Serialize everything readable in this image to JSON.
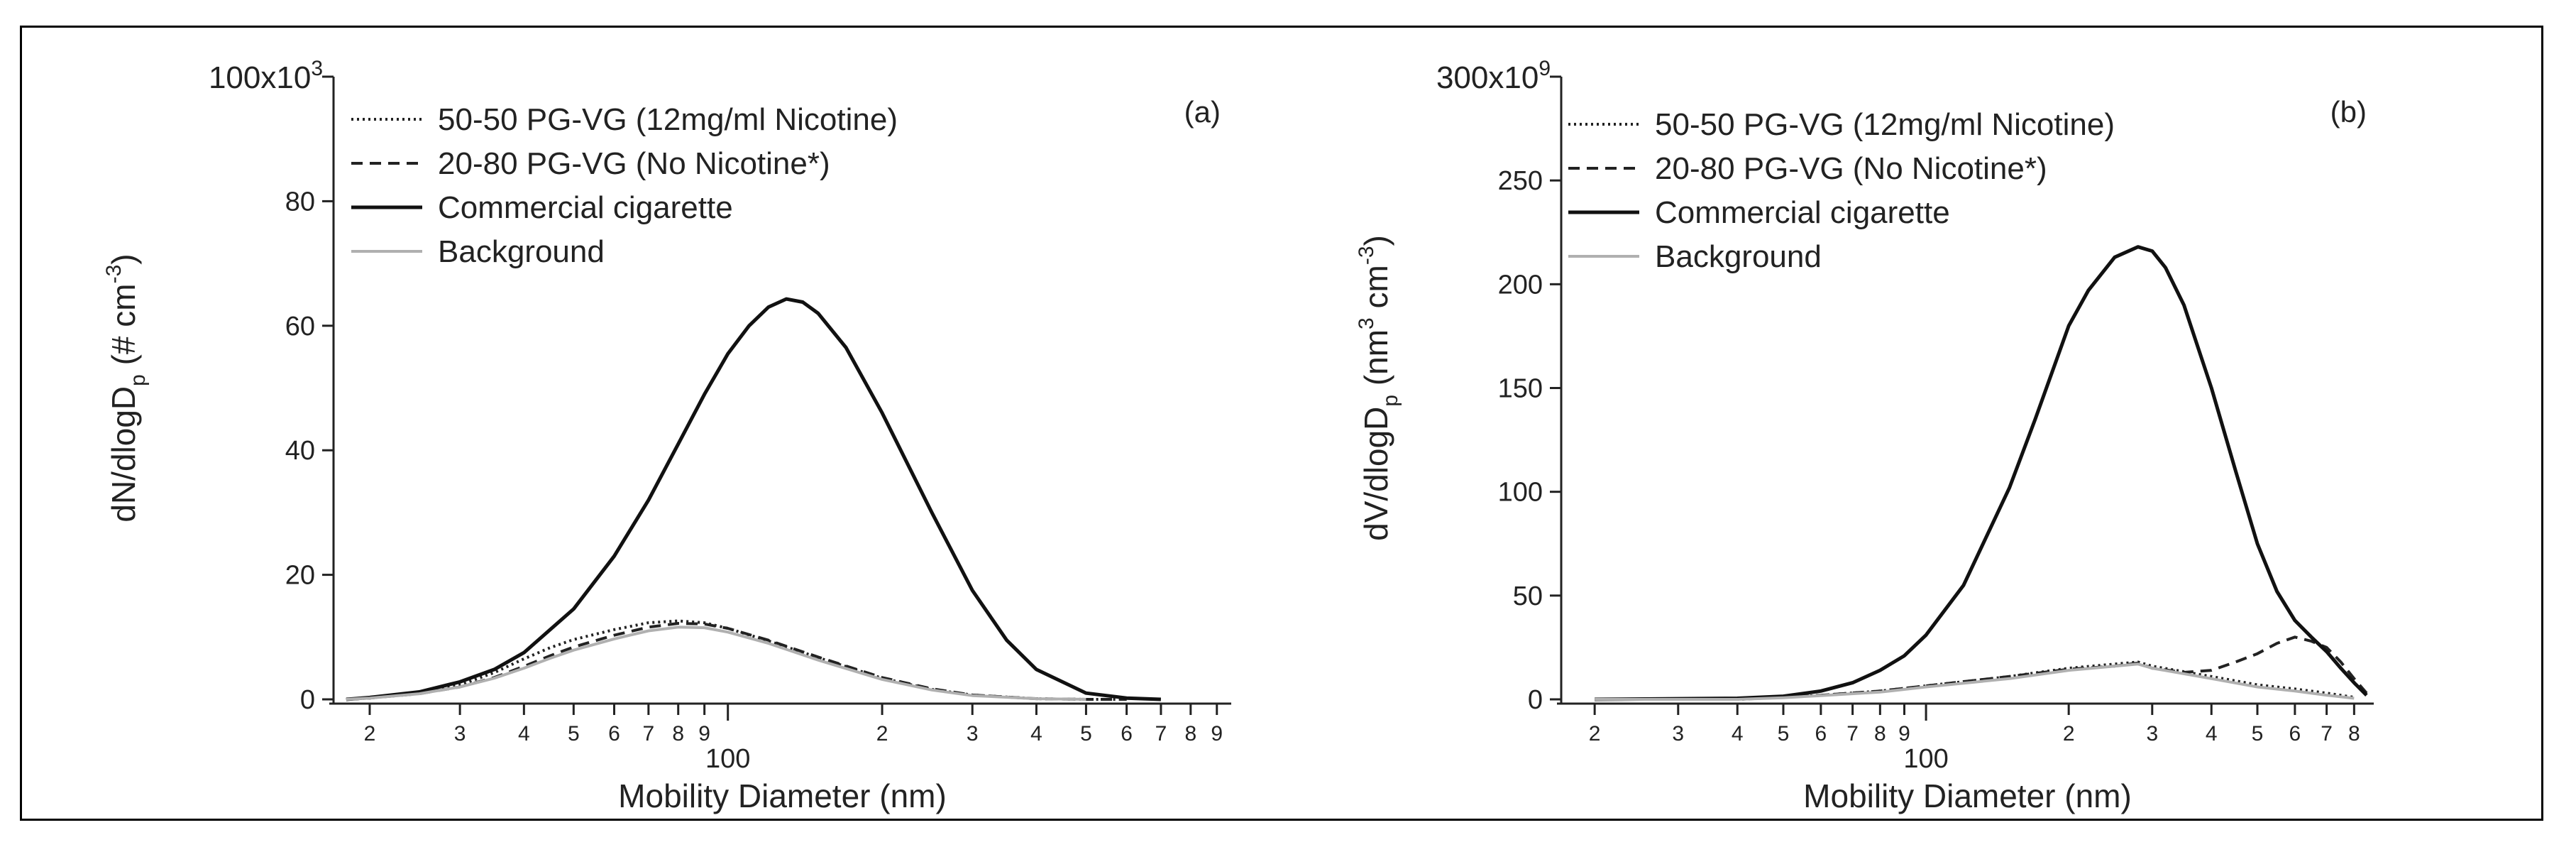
{
  "chart_data": [
    {
      "type": "line",
      "panel_label": "(a)",
      "xlabel": "Mobility Diameter (nm)",
      "ylabel": "dN/dlogD_p (# cm^-3)",
      "ylabel_parts": {
        "main": "dN/dlogD",
        "sub": "p",
        "rest": " (# cm",
        "sup": "-3",
        "close": ")"
      },
      "x_scale": "log",
      "xlim": [
        17,
        960
      ],
      "x_major_label": "100",
      "ylim": [
        0,
        100000
      ],
      "y_ticks": [
        {
          "v": 0,
          "label": "0"
        },
        {
          "v": 20000,
          "label": "20"
        },
        {
          "v": 40000,
          "label": "40"
        },
        {
          "v": 60000,
          "label": "60"
        },
        {
          "v": 80000,
          "label": "80"
        }
      ],
      "y_max_label": {
        "base": "100x10",
        "exp": "3"
      },
      "legend_placement": "top-left",
      "series": [
        {
          "name": "50-50 PG-VG (12mg/ml Nicotine)",
          "style": "dotted",
          "color": "#222222",
          "x": [
            18,
            20,
            25,
            30,
            35,
            40,
            45,
            50,
            60,
            70,
            80,
            90,
            100,
            120,
            150,
            200,
            250,
            300,
            400,
            500,
            600
          ],
          "y": [
            0,
            200,
            1000,
            2300,
            4300,
            6500,
            8300,
            9600,
            11200,
            12300,
            12600,
            12300,
            11400,
            9400,
            6700,
            3400,
            1600,
            700,
            100,
            0,
            0
          ]
        },
        {
          "name": "20-80 PG-VG (No Nicotine*)",
          "style": "dashed",
          "color": "#222222",
          "x": [
            18,
            20,
            25,
            30,
            35,
            40,
            45,
            50,
            60,
            70,
            80,
            90,
            100,
            120,
            150,
            200,
            250,
            300,
            400,
            500,
            600
          ],
          "y": [
            0,
            200,
            900,
            2000,
            3500,
            5300,
            7000,
            8400,
            10300,
            11600,
            12200,
            12100,
            11400,
            9500,
            6800,
            3500,
            1700,
            700,
            100,
            0,
            0
          ]
        },
        {
          "name": "Commercial cigarette",
          "style": "solid",
          "color": "#111111",
          "x": [
            18,
            20,
            25,
            30,
            35,
            40,
            50,
            60,
            70,
            80,
            90,
            100,
            110,
            120,
            130,
            140,
            150,
            170,
            200,
            250,
            300,
            350,
            400,
            500,
            600,
            700
          ],
          "y": [
            0,
            300,
            1200,
            2800,
            4800,
            7500,
            14500,
            23000,
            32000,
            41000,
            49000,
            55500,
            60000,
            63000,
            64300,
            63800,
            62000,
            56500,
            46000,
            30000,
            17500,
            9500,
            4800,
            1000,
            200,
            0
          ]
        },
        {
          "name": "Background",
          "style": "solid",
          "color": "#b0b0b0",
          "x": [
            18,
            20,
            25,
            30,
            35,
            40,
            45,
            50,
            60,
            70,
            80,
            90,
            100,
            120,
            150,
            200,
            250,
            300,
            400,
            500
          ],
          "y": [
            0,
            200,
            900,
            2000,
            3400,
            5000,
            6600,
            7900,
            9700,
            11000,
            11600,
            11500,
            10800,
            9000,
            6300,
            3200,
            1500,
            600,
            100,
            0
          ]
        }
      ]
    },
    {
      "type": "line",
      "panel_label": "(b)",
      "xlabel": "Mobility Diameter (nm)",
      "ylabel": "dV/dlogD_p (nm^3 cm^-3)",
      "ylabel_parts": {
        "main": "dV/dlogD",
        "sub": "p",
        "rest": " (nm",
        "sup": "3",
        "rest2": " cm",
        "sup2": "-3",
        "close": ")"
      },
      "x_scale": "log",
      "xlim": [
        17,
        880
      ],
      "x_major_label": "100",
      "ylim": [
        0,
        300000000000
      ],
      "y_ticks": [
        {
          "v": 0,
          "label": "0"
        },
        {
          "v": 50000000000,
          "label": "50"
        },
        {
          "v": 100000000000,
          "label": "100"
        },
        {
          "v": 150000000000,
          "label": "150"
        },
        {
          "v": 200000000000,
          "label": "200"
        },
        {
          "v": 250000000000,
          "label": "250"
        }
      ],
      "y_max_label": {
        "base": "300x10",
        "exp": "9"
      },
      "legend_placement": "top-left",
      "series": [
        {
          "name": "50-50 PG-VG (12mg/ml Nicotine)",
          "style": "dotted",
          "color": "#222222",
          "x": [
            20,
            40,
            50,
            60,
            80,
            100,
            150,
            200,
            250,
            280,
            300,
            400,
            500,
            600,
            700,
            800
          ],
          "y": [
            0,
            0,
            1000000000,
            2000000000,
            4000000000,
            6500000000,
            11000000000,
            15000000000,
            17000000000,
            18000000000,
            16000000000,
            11000000000,
            7000000000,
            5000000000,
            3000000000,
            1000000000
          ]
        },
        {
          "name": "20-80 PG-VG (No Nicotine*)",
          "style": "dashed",
          "color": "#222222",
          "x": [
            20,
            40,
            50,
            60,
            80,
            100,
            150,
            200,
            250,
            280,
            300,
            350,
            400,
            450,
            500,
            550,
            600,
            650,
            700,
            750,
            800,
            850
          ],
          "y": [
            0,
            0,
            1000000000,
            2000000000,
            4000000000,
            6500000000,
            11000000000,
            14500000000,
            16000000000,
            17500000000,
            15000000000,
            13000000000,
            14000000000,
            18000000000,
            22000000000,
            27000000000,
            30000000000,
            28000000000,
            25000000000,
            18000000000,
            10000000000,
            3000000000
          ]
        },
        {
          "name": "Commercial cigarette",
          "style": "solid",
          "color": "#111111",
          "x": [
            20,
            40,
            50,
            60,
            70,
            80,
            90,
            100,
            120,
            150,
            170,
            200,
            220,
            250,
            280,
            300,
            320,
            350,
            400,
            450,
            500,
            550,
            600,
            650,
            700,
            750,
            800,
            850
          ],
          "y": [
            0,
            500000000,
            1500000000,
            4000000000,
            8000000000,
            14000000000,
            21000000000,
            31000000000,
            55000000000,
            102000000000,
            135000000000,
            180000000000,
            197000000000,
            213000000000,
            218000000000,
            216000000000,
            208000000000,
            190000000000,
            150000000000,
            110000000000,
            75000000000,
            52000000000,
            38000000000,
            30000000000,
            23000000000,
            15000000000,
            8000000000,
            2000000000
          ]
        },
        {
          "name": "Background",
          "style": "solid",
          "color": "#b0b0b0",
          "x": [
            20,
            40,
            50,
            60,
            80,
            100,
            150,
            200,
            250,
            280,
            300,
            400,
            500,
            600,
            700,
            800
          ],
          "y": [
            0,
            0,
            800000000,
            1800000000,
            3500000000,
            6000000000,
            10000000000,
            14000000000,
            16000000000,
            17000000000,
            15000000000,
            10000000000,
            6000000000,
            4000000000,
            2000000000,
            500000000
          ]
        }
      ]
    }
  ]
}
